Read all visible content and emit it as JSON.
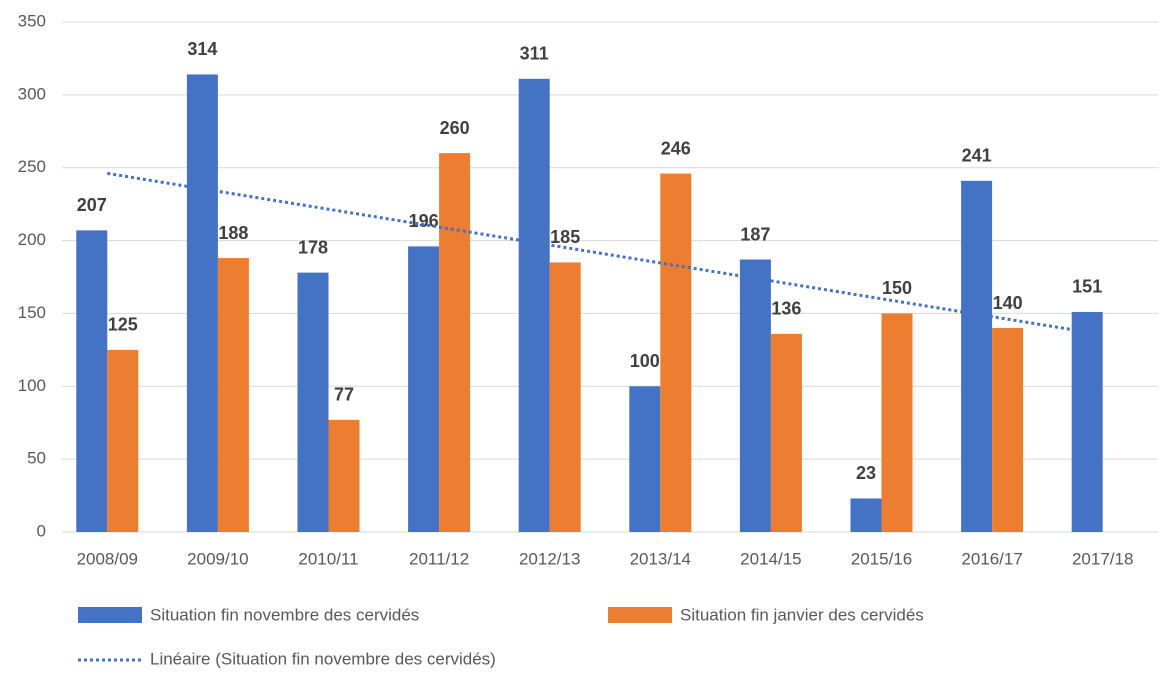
{
  "chart_data": {
    "type": "bar",
    "categories": [
      "2008/09",
      "2009/10",
      "2010/11",
      "2011/12",
      "2012/13",
      "2013/14",
      "2014/15",
      "2015/16",
      "2016/17",
      "2017/18"
    ],
    "series": [
      {
        "name": "Situation fin novembre des cervidés",
        "color": "#4472c4",
        "values": [
          207,
          314,
          178,
          196,
          311,
          100,
          187,
          23,
          241,
          151
        ]
      },
      {
        "name": "Situation fin janvier des cervidés",
        "color": "#ed7d31",
        "values": [
          125,
          188,
          77,
          260,
          185,
          246,
          136,
          150,
          140,
          null
        ]
      }
    ],
    "trendline": {
      "name": "Linéaire (Situation fin novembre des cervidés)",
      "type": "linear",
      "series": 0,
      "color": "#4472c4"
    },
    "ylim": [
      0,
      350
    ],
    "yticks": [
      0,
      50,
      100,
      150,
      200,
      250,
      300,
      350
    ],
    "grid": true,
    "legend": "bottom"
  }
}
